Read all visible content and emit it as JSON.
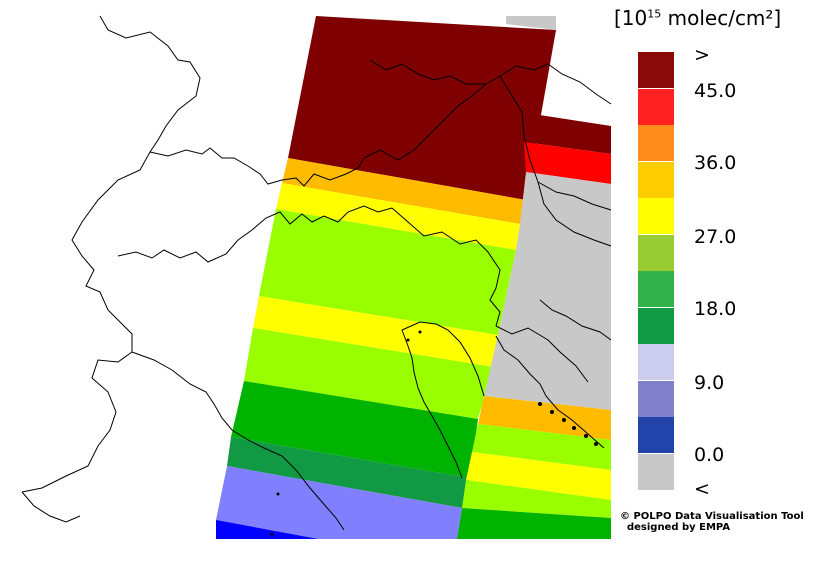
{
  "legend": {
    "unit_prefix": "[10",
    "unit_exp": "15",
    "unit_suffix": " molec/cm²]",
    "classes": [
      {
        "color": "#8b0a0a"
      },
      {
        "color": "#ff2020"
      },
      {
        "color": "#ff8c1a"
      },
      {
        "color": "#ffcc00"
      },
      {
        "color": "#ffff00"
      },
      {
        "color": "#99cc33"
      },
      {
        "color": "#33b24c"
      },
      {
        "color": "#119944"
      },
      {
        "color": "#ccccee"
      },
      {
        "color": "#8080cc"
      },
      {
        "color": "#2244aa"
      },
      {
        "color": "#c8c8c8"
      }
    ],
    "labels": [
      ">",
      "45.0",
      "36.0",
      "27.0",
      "18.0",
      "9.0",
      "0.0",
      "<"
    ]
  },
  "credit": {
    "line1": "© POLPO Data Visualisation Tool",
    "line2": "  designed by EMPA"
  },
  "colors": {
    "gt": "#7f0000",
    "red": "#ff0000",
    "orange": "#ffbb00",
    "yellow": "#ffff00",
    "lime": "#99ff00",
    "green": "#00b300",
    "dkgreen": "#119944",
    "periwinkle": "#8080ff",
    "blue": "#0000ff",
    "nodata": "#c8c8c8"
  }
}
